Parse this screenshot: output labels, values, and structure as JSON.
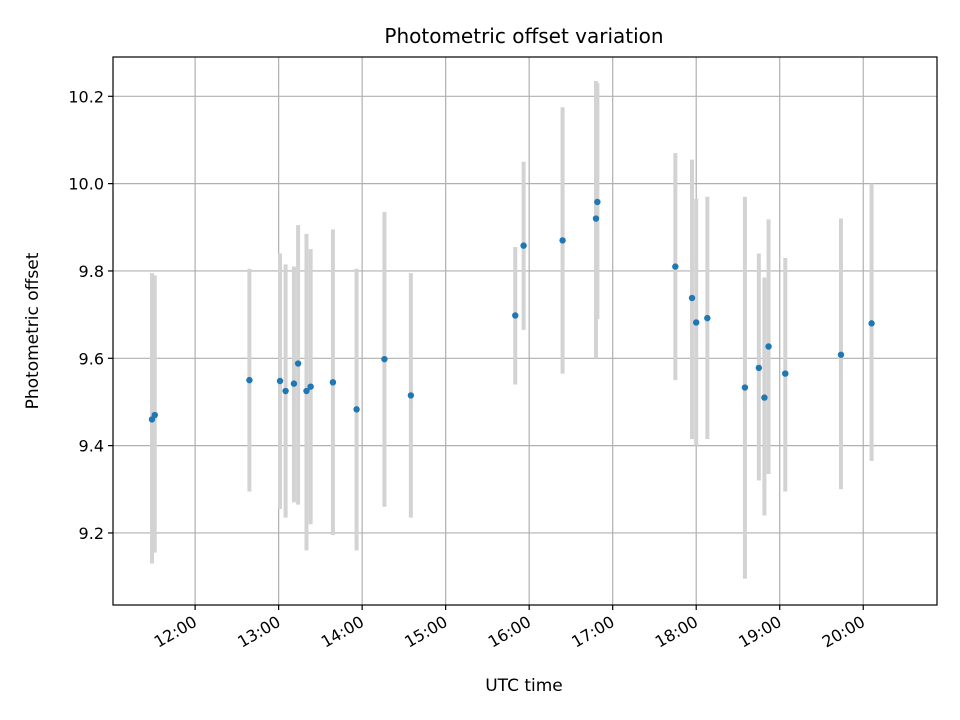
{
  "chart_data": {
    "type": "scatter",
    "title": "Photometric offset variation",
    "xlabel": "UTC time",
    "ylabel": "Photometric offset",
    "xlim": [
      "11:01",
      "20:53"
    ],
    "ylim": [
      9.035,
      10.29
    ],
    "x_ticks": [
      "12:00",
      "13:00",
      "14:00",
      "15:00",
      "16:00",
      "17:00",
      "18:00",
      "19:00",
      "20:00"
    ],
    "y_ticks": [
      "9.2",
      "9.4",
      "9.6",
      "9.8",
      "10.0",
      "10.2"
    ],
    "grid": true,
    "marker_color": "#1f77b4",
    "errorbar_color": "#d3d3d3",
    "series": [
      {
        "points": [
          {
            "t": "11:29",
            "y": 9.46,
            "lo": 9.13,
            "hi": 9.795
          },
          {
            "t": "11:31",
            "y": 9.47,
            "lo": 9.155,
            "hi": 9.79
          },
          {
            "t": "12:39",
            "y": 9.55,
            "lo": 9.295,
            "hi": 9.805
          },
          {
            "t": "13:01",
            "y": 9.548,
            "lo": 9.255,
            "hi": 9.84
          },
          {
            "t": "13:05",
            "y": 9.525,
            "lo": 9.235,
            "hi": 9.815
          },
          {
            "t": "13:11",
            "y": 9.542,
            "lo": 9.27,
            "hi": 9.81
          },
          {
            "t": "13:14",
            "y": 9.588,
            "lo": 9.265,
            "hi": 9.905
          },
          {
            "t": "13:20",
            "y": 9.525,
            "lo": 9.16,
            "hi": 9.885
          },
          {
            "t": "13:23",
            "y": 9.535,
            "lo": 9.22,
            "hi": 9.85
          },
          {
            "t": "13:39",
            "y": 9.545,
            "lo": 9.195,
            "hi": 9.895
          },
          {
            "t": "13:56",
            "y": 9.483,
            "lo": 9.16,
            "hi": 9.805
          },
          {
            "t": "14:16",
            "y": 9.598,
            "lo": 9.26,
            "hi": 9.935
          },
          {
            "t": "14:35",
            "y": 9.515,
            "lo": 9.235,
            "hi": 9.795
          },
          {
            "t": "15:50",
            "y": 9.698,
            "lo": 9.54,
            "hi": 9.855
          },
          {
            "t": "15:56",
            "y": 9.858,
            "lo": 9.665,
            "hi": 10.05
          },
          {
            "t": "16:24",
            "y": 9.87,
            "lo": 9.565,
            "hi": 10.175
          },
          {
            "t": "16:48",
            "y": 9.92,
            "lo": 9.6,
            "hi": 10.235
          },
          {
            "t": "16:49",
            "y": 9.958,
            "lo": 9.69,
            "hi": 10.23
          },
          {
            "t": "17:45",
            "y": 9.81,
            "lo": 9.55,
            "hi": 10.07
          },
          {
            "t": "17:57",
            "y": 9.738,
            "lo": 9.415,
            "hi": 10.055
          },
          {
            "t": "18:00",
            "y": 9.682,
            "lo": 9.4,
            "hi": 9.965
          },
          {
            "t": "18:08",
            "y": 9.692,
            "lo": 9.415,
            "hi": 9.97
          },
          {
            "t": "18:35",
            "y": 9.533,
            "lo": 9.095,
            "hi": 9.97
          },
          {
            "t": "18:45",
            "y": 9.578,
            "lo": 9.32,
            "hi": 9.84
          },
          {
            "t": "18:49",
            "y": 9.51,
            "lo": 9.24,
            "hi": 9.785
          },
          {
            "t": "18:52",
            "y": 9.627,
            "lo": 9.335,
            "hi": 9.918
          },
          {
            "t": "19:04",
            "y": 9.565,
            "lo": 9.295,
            "hi": 9.83
          },
          {
            "t": "19:44",
            "y": 9.608,
            "lo": 9.3,
            "hi": 9.92
          },
          {
            "t": "20:06",
            "y": 9.68,
            "lo": 9.365,
            "hi": 10.0
          }
        ]
      }
    ]
  }
}
